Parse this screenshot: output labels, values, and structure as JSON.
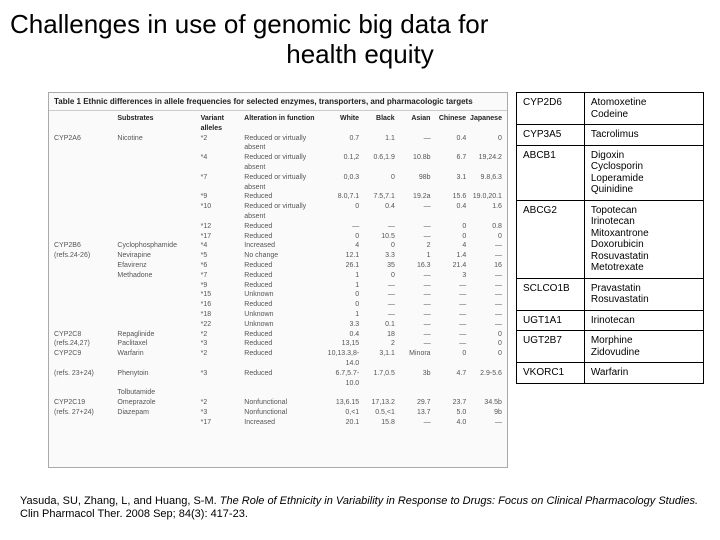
{
  "title_line1": "Challenges in use of genomic big data for",
  "title_line2": "health equity",
  "figure": {
    "caption": "Table 1  Ethnic differences in allele frequencies for selected enzymes, transporters, and pharmacologic targets",
    "col_headers": [
      "",
      "Substrates",
      "Variant alleles",
      "Alteration in function",
      "White",
      "Black",
      "Asian",
      "Chinese",
      "Japanese"
    ],
    "sample_rows": [
      [
        "CYP2A6",
        "Nicotine",
        "*2",
        "Reduced or virtually absent",
        "0.7",
        "1.1",
        "—",
        "0.4",
        "0"
      ],
      [
        "",
        "",
        "*4",
        "Reduced or virtually absent",
        "0.1,2",
        "0.6,1.9",
        "10.8b",
        "6.7",
        "19,24.2"
      ],
      [
        "",
        "",
        "*7",
        "Reduced or virtually absent",
        "0,0.3",
        "0",
        "98b",
        "3.1",
        "9.8,6.3"
      ],
      [
        "",
        "",
        "*9",
        "Reduced",
        "8.0,7.1",
        "7.5,7.1",
        "19.2a",
        "15.6",
        "19.0,20.1"
      ],
      [
        "",
        "",
        "*10",
        "Reduced or virtually absent",
        "0",
        "0.4",
        "—",
        "0.4",
        "1.6"
      ],
      [
        "",
        "",
        "*12",
        "Reduced",
        "—",
        "—",
        "—",
        "0",
        "0.8"
      ],
      [
        "",
        "",
        "*17",
        "Reduced",
        "0",
        "10.5",
        "—",
        "0",
        "0"
      ],
      [
        "CYP2B6",
        "Cyclophosphamide",
        "*4",
        "Increased",
        "4",
        "0",
        "2",
        "4",
        "—"
      ],
      [
        "(refs.24-26)",
        "Nevirapine",
        "*5",
        "No change",
        "12.1",
        "3.3",
        "1",
        "1.4",
        "—"
      ],
      [
        "",
        "Efavirenz",
        "*6",
        "Reduced",
        "26.1",
        "35",
        "16.3",
        "21.4",
        "16"
      ],
      [
        "",
        "Methadone",
        "*7",
        "Reduced",
        "1",
        "0",
        "—",
        "3",
        "—"
      ],
      [
        "",
        "",
        "*9",
        "Reduced",
        "1",
        "—",
        "—",
        "—",
        "—"
      ],
      [
        "",
        "",
        "*15",
        "Unknown",
        "0",
        "—",
        "—",
        "—",
        "—"
      ],
      [
        "",
        "",
        "*16",
        "Reduced",
        "0",
        "—",
        "—",
        "—",
        "—"
      ],
      [
        "",
        "",
        "*18",
        "Unknown",
        "1",
        "—",
        "—",
        "—",
        "—"
      ],
      [
        "",
        "",
        "*22",
        "Unknown",
        "3.3",
        "0.1",
        "—",
        "—",
        "—"
      ],
      [
        "CYP2C8",
        "Repaglinide",
        "*2",
        "Reduced",
        "0.4",
        "18",
        "—",
        "—",
        "0"
      ],
      [
        "(refs.24,27)",
        "Paclitaxel",
        "*3",
        "Reduced",
        "13,15",
        "2",
        "—",
        "—",
        "0"
      ],
      [
        "CYP2C9",
        "Warfarin",
        "*2",
        "Reduced",
        "10,13.3,8-14.0",
        "3,1.1",
        "Minora",
        "0",
        "0"
      ],
      [
        "(refs. 23+24)",
        "Phenytoin",
        "*3",
        "Reduced",
        "6.7,5.7-10.0",
        "1.7,0.5",
        "3b",
        "4.7",
        "2.9-5.6"
      ],
      [
        "",
        "Tolbutamide",
        "",
        "",
        "",
        "",
        "",
        "",
        ""
      ],
      [
        "CYP2C19",
        "Omeprazole",
        "*2",
        "Nonfunctional",
        "13,6.15",
        "17,13.2",
        "29.7",
        "23.7",
        "34.5b"
      ],
      [
        "(refs. 27+24)",
        "Diazepam",
        "*3",
        "Nonfunctional",
        "0,<1",
        "0.5,<1",
        "13.7",
        "5.0",
        "9b"
      ],
      [
        "",
        "",
        "*17",
        "Increased",
        "20.1",
        "15.8",
        "—",
        "4.0",
        "—"
      ]
    ]
  },
  "side_table": {
    "rows": [
      {
        "gene": "CYP2D6",
        "drugs": "Atomoxetine\nCodeine"
      },
      {
        "gene": "CYP3A5",
        "drugs": "Tacrolimus"
      },
      {
        "gene": "ABCB1",
        "drugs": "Digoxin\nCyclosporin\nLoperamide\nQuinidine"
      },
      {
        "gene": "ABCG2",
        "drugs": "Topotecan\nIrinotecan\nMitoxantrone\nDoxorubicin\nRosuvastatin\nMetotrexate"
      },
      {
        "gene": "SCLCO1B",
        "drugs": "Pravastatin\nRosuvastatin"
      },
      {
        "gene": "UGT1A1",
        "drugs": "Irinotecan"
      },
      {
        "gene": "UGT2B7",
        "drugs": "Morphine\nZidovudine"
      },
      {
        "gene": "VKORC1",
        "drugs": "Warfarin"
      }
    ]
  },
  "citation": {
    "authors": "Yasuda, SU, Zhang, L, and Huang, S-M. ",
    "title_ital": "The Role of Ethnicity in Variability in Response to Drugs: Focus on Clinical Pharmacology Studies.",
    "journal": " Clin Pharmacol Ther. 2008 Sep; 84(3): 417-23."
  },
  "colors": {
    "border": "#000000",
    "text": "#000000",
    "fig_border": "#aaaaaa",
    "fig_bg": "#fafafa"
  }
}
